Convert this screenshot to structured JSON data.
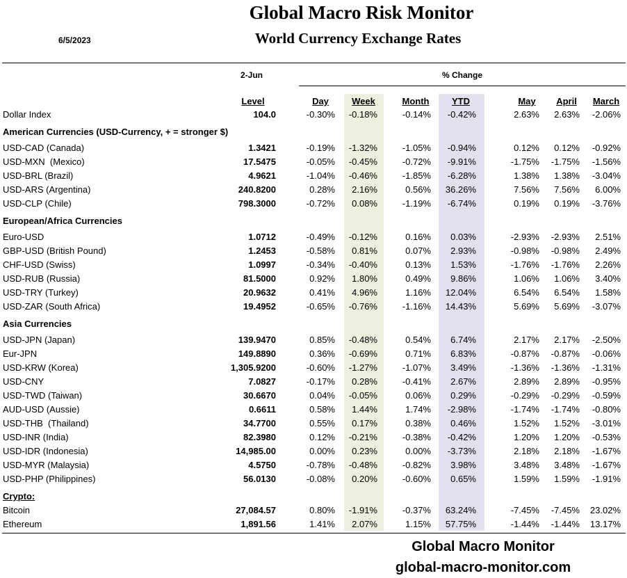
{
  "header": {
    "title": "Global Macro Risk Monitor",
    "subtitle": "World Currency Exchange Rates",
    "date": "6/5/2023"
  },
  "table": {
    "level_group": "2-Jun",
    "change_group": "% Change",
    "columns": [
      "Level",
      "Day",
      "Week",
      "Month",
      "YTD",
      "May",
      "April",
      "March"
    ],
    "dollar_index": [
      "Dollar Index",
      "104.0",
      "-0.30%",
      "-0.18%",
      "-0.14%",
      "-0.42%",
      "2.63%",
      "2.63%",
      "-2.06%"
    ],
    "sections": [
      {
        "title": "American Currencies (USD-Currency, + = stronger $)",
        "rows": [
          [
            "USD-CAD (Canada)",
            "1.3421",
            "-0.19%",
            "-1.32%",
            "-1.05%",
            "-0.94%",
            "0.12%",
            "0.12%",
            "-0.92%"
          ],
          [
            "USD-MXN  (Mexico)",
            "17.5475",
            "-0.05%",
            "-0.45%",
            "-0.72%",
            "-9.91%",
            "-1.75%",
            "-1.75%",
            "-1.56%"
          ],
          [
            "USD-BRL (Brazil)",
            "4.9621",
            "-1.04%",
            "-0.46%",
            "-1.85%",
            "-6.28%",
            "1.38%",
            "1.38%",
            "-3.04%"
          ],
          [
            "USD-ARS (Argentina)",
            "240.8200",
            "0.28%",
            "2.16%",
            "0.56%",
            "36.26%",
            "7.56%",
            "7.56%",
            "6.00%"
          ],
          [
            "USD-CLP (Chile)",
            "798.3000",
            "-0.72%",
            "0.08%",
            "-1.19%",
            "-6.74%",
            "0.19%",
            "0.19%",
            "-3.76%"
          ]
        ]
      },
      {
        "title": "European/Africa Currencies",
        "rows": [
          [
            "Euro-USD",
            "1.0712",
            "-0.49%",
            "-0.12%",
            "0.16%",
            "0.03%",
            "-2.93%",
            "-2.93%",
            "2.51%"
          ],
          [
            "GBP-USD (British Pound)",
            "1.2453",
            "-0.58%",
            "0.81%",
            "0.07%",
            "2.93%",
            "-0.98%",
            "-0.98%",
            "2.49%"
          ],
          [
            "CHF-USD (Swiss)",
            "1.0997",
            "-0.34%",
            "-0.40%",
            "0.13%",
            "1.53%",
            "-1.76%",
            "-1.76%",
            "2.26%"
          ],
          [
            "USD-RUB (Russia)",
            "81.5000",
            "0.92%",
            "1.80%",
            "0.49%",
            "9.86%",
            "1.06%",
            "1.06%",
            "3.40%"
          ],
          [
            "USD-TRY (Turkey)",
            "20.9632",
            "0.41%",
            "4.96%",
            "1.16%",
            "12.04%",
            "6.54%",
            "6.54%",
            "1.58%"
          ],
          [
            "USD-ZAR (South Africa)",
            "19.4952",
            "-0.65%",
            "-0.76%",
            "-1.16%",
            "14.43%",
            "5.69%",
            "5.69%",
            "-3.07%"
          ]
        ]
      },
      {
        "title": "Asia Currencies",
        "rows": [
          [
            "USD-JPN (Japan)",
            "139.9470",
            "0.85%",
            "-0.48%",
            "0.54%",
            "6.74%",
            "2.17%",
            "2.17%",
            "-2.50%"
          ],
          [
            "Eur-JPN",
            "149.8890",
            "0.36%",
            "-0.69%",
            "0.71%",
            "6.83%",
            "-0.87%",
            "-0.87%",
            "-0.06%"
          ],
          [
            "USD-KRW (Korea)",
            "1,305.9200",
            "-0.60%",
            "-1.27%",
            "-1.07%",
            "3.49%",
            "-1.36%",
            "-1.36%",
            "-1.31%"
          ],
          [
            "USD-CNY",
            "7.0827",
            "-0.17%",
            "0.28%",
            "-0.41%",
            "2.67%",
            "2.89%",
            "2.89%",
            "-0.95%"
          ],
          [
            "USD-TWD (Taiwan)",
            "30.6670",
            "0.04%",
            "-0.05%",
            "0.06%",
            "0.29%",
            "-0.29%",
            "-0.29%",
            "-0.59%"
          ],
          [
            "AUD-USD (Aussie)",
            "0.6611",
            "0.58%",
            "1.44%",
            "1.74%",
            "-2.98%",
            "-1.74%",
            "-1.74%",
            "-0.80%"
          ],
          [
            "USD-THB  (Thailand)",
            "34.7700",
            "0.55%",
            "0.17%",
            "0.38%",
            "0.46%",
            "1.52%",
            "1.52%",
            "-3.01%"
          ],
          [
            "USD-INR (India)",
            "82.3980",
            "0.12%",
            "-0.21%",
            "-0.38%",
            "-0.42%",
            "1.20%",
            "1.20%",
            "-0.53%"
          ],
          [
            "USD-IDR (Indonesia)",
            "14,985.00",
            "0.00%",
            "0.23%",
            "0.00%",
            "-3.73%",
            "2.18%",
            "2.18%",
            "-1.67%"
          ],
          [
            "USD-MYR (Malaysia)",
            "4.5750",
            "-0.78%",
            "-0.48%",
            "-0.82%",
            "3.98%",
            "3.48%",
            "3.48%",
            "-1.67%"
          ],
          [
            "USD-PHP (Philippines)",
            "56.0130",
            "-0.08%",
            "0.20%",
            "-0.60%",
            "0.65%",
            "1.59%",
            "1.59%",
            "-1.91%"
          ]
        ]
      },
      {
        "title": "Crypto:",
        "rows": [
          [
            "Bitcoin",
            "27,084.57",
            "0.80%",
            "-1.91%",
            "-0.37%",
            "63.24%",
            "-7.45%",
            "-7.45%",
            "23.02%"
          ],
          [
            "Ethereum",
            "1,891.56",
            "1.41%",
            "2.07%",
            "1.15%",
            "57.75%",
            "-1.44%",
            "-1.44%",
            "13.17%"
          ]
        ]
      }
    ]
  },
  "footer": {
    "name": "Global Macro Monitor",
    "url": "global-macro-monitor.com"
  }
}
